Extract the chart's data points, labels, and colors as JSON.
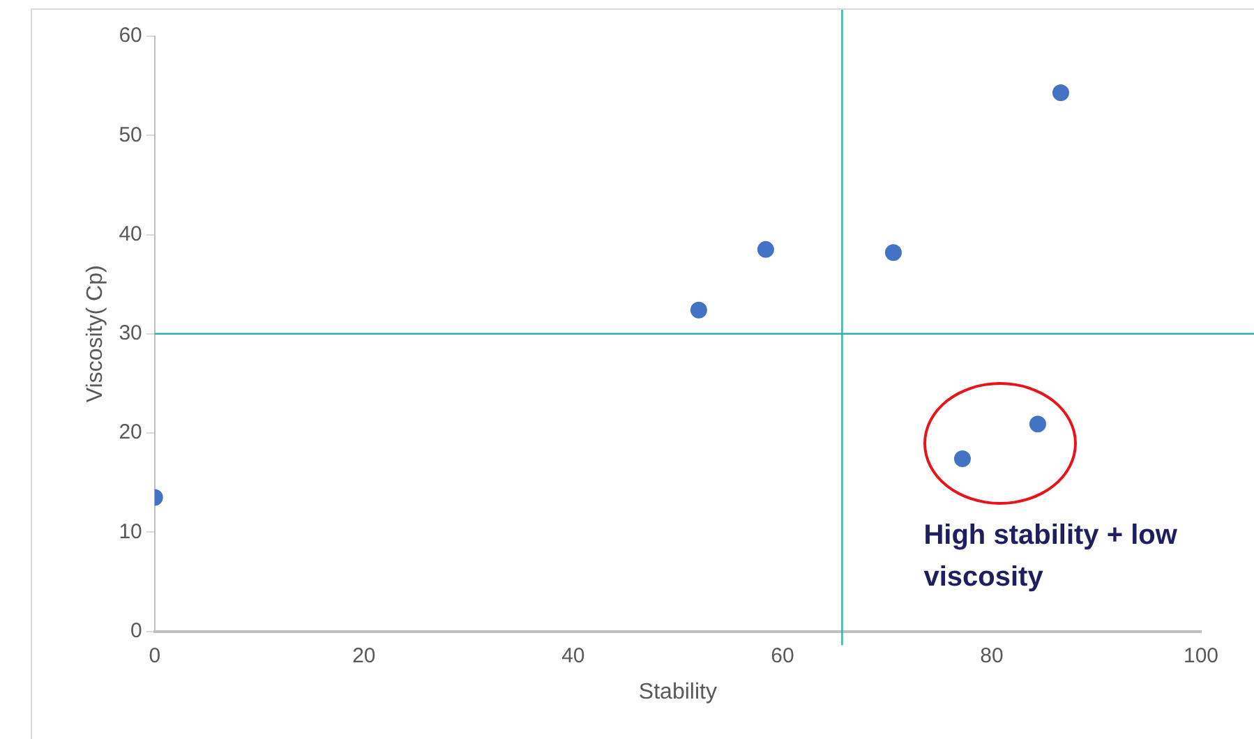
{
  "chart_data": {
    "type": "scatter",
    "xlabel": "Stability",
    "ylabel": "Viscosity( Cp)",
    "series": [
      {
        "color": "#4472c4",
        "x": [
          0,
          52,
          58.4,
          70.6,
          77.2,
          84.4,
          86.6
        ],
        "values": [
          13.5,
          32.4,
          38.5,
          38.2,
          17.4,
          20.9,
          54.3
        ]
      }
    ],
    "xlim": [
      0,
      100
    ],
    "xticks": [
      0,
      20,
      40,
      60,
      80,
      100
    ],
    "ylim": [
      0,
      60
    ],
    "yticks": [
      0,
      10,
      20,
      30,
      40,
      50,
      60
    ],
    "ref_lines": [
      {
        "axis": "x",
        "value": 65.7,
        "color": "#2ab3a6"
      },
      {
        "axis": "y",
        "value": 30,
        "color": "#2ab3a6"
      }
    ],
    "annotations": [
      "High stability + low viscosity"
    ],
    "grid": false,
    "legend": false,
    "marker": "circle"
  }
}
